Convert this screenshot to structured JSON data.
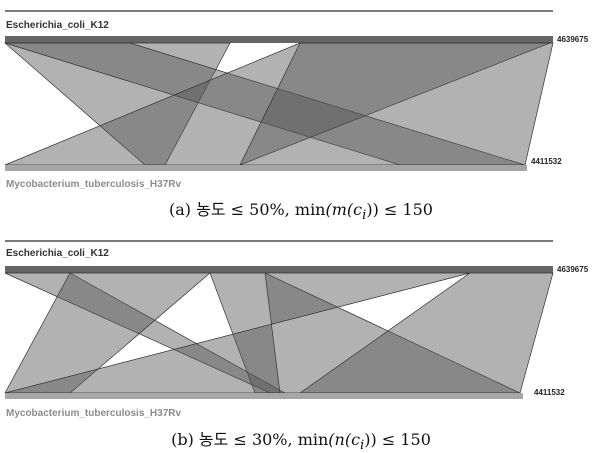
{
  "panels": [
    {
      "id": "a",
      "top_genome": "Escherichia_coli_K12",
      "top_length": "4639675",
      "bottom_genome": "Mycobacterium_tuberculosis_H37Rv",
      "bottom_length": "4411532",
      "caption": {
        "label": "(a)",
        "text": "농도 ≤ 50%,",
        "func": "min",
        "expr": "(m(c",
        "sub": "i",
        "tail": ")) ≤ 150"
      }
    },
    {
      "id": "b",
      "top_genome": "Escherichia_coli_K12",
      "top_length": "4639675",
      "bottom_genome": "Mycobacterium_tuberculosis_H37Rv",
      "bottom_length": "4411532",
      "caption": {
        "label": "(b)",
        "text": "농도 ≤ 30%,",
        "func": "min",
        "expr": "(n(c",
        "sub": "i",
        "tail": ")) ≤ 150"
      }
    }
  ],
  "colors": {
    "top_bar": "#666666",
    "bottom_bar": "#a6a6a6",
    "block_fill": "#555555",
    "block_stroke": "#333333"
  }
}
